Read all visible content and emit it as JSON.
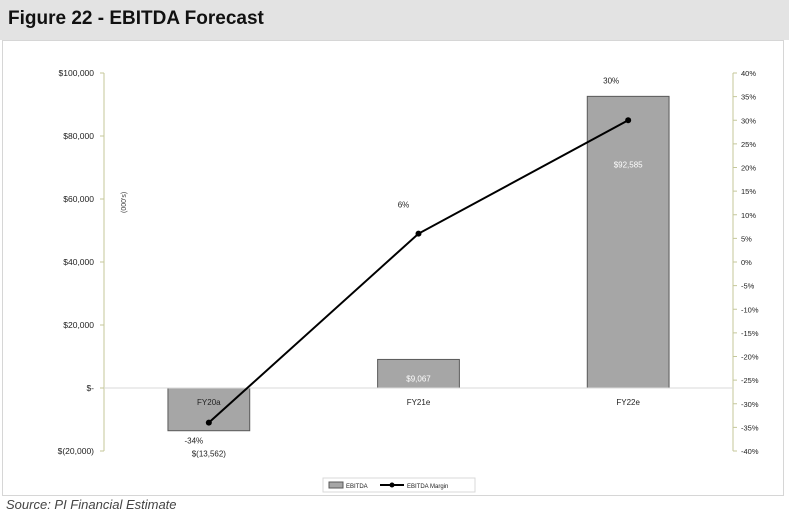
{
  "figure": {
    "title": "Figure 22 - EBITDA Forecast",
    "source": "Source: PI Financial Estimate"
  },
  "chart_data": {
    "type": "bar",
    "categories": [
      "FY20a",
      "FY21e",
      "FY22e"
    ],
    "series": [
      {
        "name": "EBITDA",
        "type": "bar",
        "axis": "left",
        "values": [
          -13562,
          9067,
          92585
        ],
        "labels": [
          "$(13,562)",
          "$9,067",
          "$92,585"
        ]
      },
      {
        "name": "EBITDA Margin",
        "type": "line",
        "axis": "right",
        "values": [
          -34,
          6,
          30
        ],
        "labels": [
          "-34%",
          "6%",
          "30%"
        ]
      }
    ],
    "ylabel": "(000's)",
    "ylim": [
      -20000,
      100000
    ],
    "yticks": [
      -20000,
      0,
      20000,
      40000,
      60000,
      80000,
      100000
    ],
    "ytick_labels": [
      "$(20,000)",
      "$-",
      "$20,000",
      "$40,000",
      "$60,000",
      "$80,000",
      "$100,000"
    ],
    "y2lim": [
      -40,
      40
    ],
    "y2ticks": [
      -40,
      -35,
      -30,
      -25,
      -20,
      -15,
      -10,
      -5,
      0,
      5,
      10,
      15,
      20,
      25,
      30,
      35,
      40
    ],
    "y2tick_labels": [
      "-40%",
      "-35%",
      "-30%",
      "-25%",
      "-20%",
      "-15%",
      "-10%",
      "-5%",
      "0%",
      "5%",
      "10%",
      "15%",
      "20%",
      "25%",
      "30%",
      "35%",
      "40%"
    ],
    "grid": false,
    "legend_position": "bottom",
    "colors": {
      "bar_fill": "#a6a6a6",
      "bar_stroke": "#595959",
      "line": "#000000",
      "right_axis": "#c4c79a",
      "left_axis": "#c4c79a"
    }
  }
}
